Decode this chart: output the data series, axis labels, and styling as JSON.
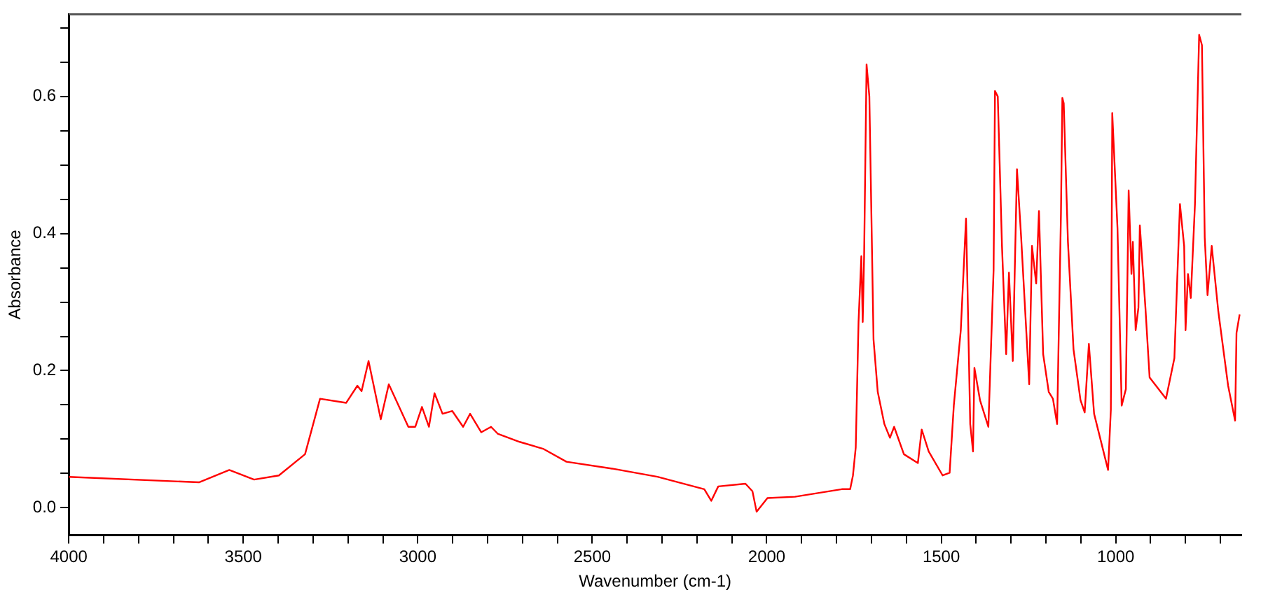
{
  "chart_data": {
    "type": "line",
    "xlabel": "Wavenumber (cm-1)",
    "ylabel": "Absorbance",
    "color": "#ff0000",
    "grid": false,
    "legend": false,
    "marker": "none",
    "line_style": "solid",
    "xlim": [
      4000,
      640
    ],
    "ylim": [
      -0.04,
      0.72
    ],
    "xticks": [
      4000,
      {
        "value": 3900,
        "label": null
      },
      {
        "value": 3800,
        "label": null
      },
      {
        "value": 3700,
        "label": null
      },
      {
        "value": 3600,
        "label": null
      },
      3500,
      {
        "value": 3400,
        "label": null
      },
      {
        "value": 3300,
        "label": null
      },
      {
        "value": 3200,
        "label": null
      },
      {
        "value": 3100,
        "label": null
      },
      3000,
      {
        "value": 2900,
        "label": null
      },
      {
        "value": 2800,
        "label": null
      },
      {
        "value": 2700,
        "label": null
      },
      {
        "value": 2600,
        "label": null
      },
      2500,
      {
        "value": 2400,
        "label": null
      },
      {
        "value": 2300,
        "label": null
      },
      {
        "value": 2200,
        "label": null
      },
      {
        "value": 2100,
        "label": null
      },
      2000,
      {
        "value": 1900,
        "label": null
      },
      {
        "value": 1800,
        "label": null
      },
      {
        "value": 1700,
        "label": null
      },
      {
        "value": 1600,
        "label": null
      },
      1500,
      {
        "value": 1400,
        "label": null
      },
      {
        "value": 1300,
        "label": null
      },
      {
        "value": 1200,
        "label": null
      },
      {
        "value": 1100,
        "label": null
      },
      1000,
      {
        "value": 900,
        "label": null
      },
      {
        "value": 800,
        "label": null
      },
      {
        "value": 700,
        "label": null
      }
    ],
    "yticks": [
      {
        "value": 0,
        "label": "0.0"
      },
      {
        "value": 0.05,
        "label": null
      },
      {
        "value": 0.1,
        "label": null
      },
      {
        "value": 0.15,
        "label": null
      },
      {
        "value": 0.2,
        "label": "0.2"
      },
      {
        "value": 0.25,
        "label": null
      },
      {
        "value": 0.3,
        "label": null
      },
      {
        "value": 0.35,
        "label": null
      },
      {
        "value": 0.4,
        "label": "0.4"
      },
      {
        "value": 0.45,
        "label": null
      },
      {
        "value": 0.5,
        "label": null
      },
      {
        "value": 0.55,
        "label": null
      },
      {
        "value": 0.6,
        "label": "0.6"
      },
      {
        "value": 0.65,
        "label": null
      },
      {
        "value": 0.7,
        "label": null
      }
    ],
    "x": [
      4000,
      3627,
      3540,
      3469,
      3398,
      3323,
      3280,
      3205,
      3173,
      3161,
      3141,
      3106,
      3083,
      3027,
      3007,
      2988,
      2968,
      2952,
      2929,
      2901,
      2870,
      2850,
      2818,
      2790,
      2771,
      2708,
      2641,
      2574,
      2443,
      2313,
      2179,
      2159,
      2139,
      2061,
      2041,
      2029,
      1998,
      1919,
      1785,
      1761,
      1753,
      1745,
      1737,
      1729,
      1725,
      1721,
      1714,
      1706,
      1694,
      1682,
      1663,
      1647,
      1635,
      1607,
      1567,
      1556,
      1536,
      1496,
      1476,
      1464,
      1444,
      1429,
      1425,
      1417,
      1409,
      1405,
      1389,
      1365,
      1350,
      1346,
      1338,
      1326,
      1314,
      1306,
      1295,
      1283,
      1271,
      1248,
      1240,
      1228,
      1220,
      1208,
      1192,
      1180,
      1168,
      1157,
      1153,
      1149,
      1137,
      1121,
      1101,
      1089,
      1077,
      1062,
      1022,
      1014,
      1010,
      995,
      983,
      971,
      963,
      955,
      951,
      943,
      935,
      931,
      915,
      903,
      856,
      832,
      816,
      804,
      800,
      793,
      785,
      773,
      761,
      753,
      745,
      737,
      725,
      706,
      678,
      658,
      654,
      645
    ],
    "values": [
      0.045,
      0.037,
      0.055,
      0.041,
      0.047,
      0.078,
      0.159,
      0.153,
      0.178,
      0.17,
      0.214,
      0.129,
      0.18,
      0.118,
      0.118,
      0.147,
      0.118,
      0.167,
      0.137,
      0.141,
      0.118,
      0.137,
      0.11,
      0.118,
      0.108,
      0.096,
      0.086,
      0.067,
      0.057,
      0.045,
      0.027,
      0.01,
      0.031,
      0.035,
      0.024,
      -0.006,
      0.014,
      0.016,
      0.027,
      0.027,
      0.047,
      0.088,
      0.271,
      0.367,
      0.271,
      0.367,
      0.647,
      0.6,
      0.245,
      0.169,
      0.122,
      0.102,
      0.118,
      0.078,
      0.065,
      0.114,
      0.082,
      0.047,
      0.051,
      0.149,
      0.259,
      0.422,
      0.327,
      0.122,
      0.082,
      0.204,
      0.157,
      0.118,
      0.347,
      0.608,
      0.6,
      0.382,
      0.224,
      0.343,
      0.214,
      0.494,
      0.394,
      0.18,
      0.382,
      0.327,
      0.433,
      0.224,
      0.169,
      0.159,
      0.122,
      0.429,
      0.598,
      0.59,
      0.388,
      0.231,
      0.157,
      0.139,
      0.239,
      0.137,
      0.055,
      0.143,
      0.576,
      0.408,
      0.149,
      0.173,
      0.463,
      0.341,
      0.388,
      0.259,
      0.292,
      0.412,
      0.292,
      0.19,
      0.159,
      0.218,
      0.443,
      0.382,
      0.259,
      0.341,
      0.306,
      0.443,
      0.69,
      0.675,
      0.394,
      0.31,
      0.382,
      0.286,
      0.178,
      0.127,
      0.255,
      0.282
    ]
  }
}
